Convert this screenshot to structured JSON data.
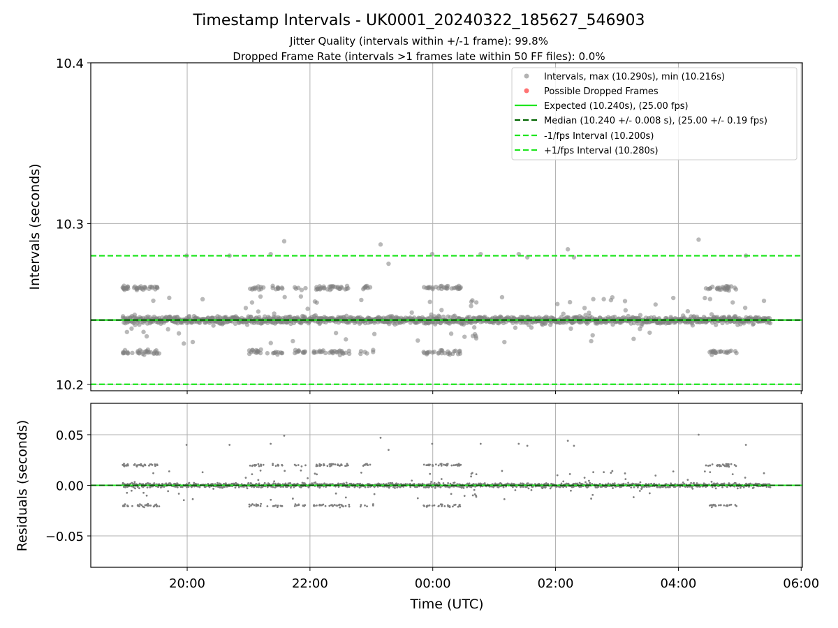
{
  "chart_data": {
    "type": "scatter",
    "title": "Timestamp Intervals - UK0001_20240322_185627_546903",
    "subtitle_lines": [
      "Jitter Quality (intervals within +/-1 frame): 99.8%",
      "Dropped Frame Rate (intervals >1 frames late within 50 FF files): 0.0%"
    ],
    "xlabel": "Time (UTC)",
    "x_ticks": [
      "20:00",
      "22:00",
      "00:00",
      "02:00",
      "04:00",
      "06:00"
    ],
    "x_tick_hours": [
      20,
      22,
      24,
      26,
      28,
      30
    ],
    "xlim_hours": [
      18.43,
      30.02
    ],
    "data_range_hours": [
      18.95,
      29.5
    ],
    "grid": true,
    "legend_position": "top-right",
    "colors": {
      "intervals": "#808080",
      "dropped": "#ff4444",
      "expected": "#1fe51f",
      "median": "#006400",
      "fps_bounds": "#1fe51f",
      "axis": "#000000",
      "grid": "#b0b0b0"
    },
    "top_panel": {
      "ylabel": "Intervals (seconds)",
      "ylim": [
        10.196,
        10.4
      ],
      "y_ticks": [
        "10.2",
        "10.3",
        "10.4"
      ],
      "y_tick_values": [
        10.2,
        10.3,
        10.4
      ],
      "expected": 10.24,
      "median": 10.24,
      "minus_fps": 10.2,
      "plus_fps": 10.28,
      "legend": [
        {
          "label": "Intervals, max (10.290s), min (10.216s)",
          "kind": "dot-gray"
        },
        {
          "label": "Possible Dropped Frames",
          "kind": "dot-red"
        },
        {
          "label": "Expected (10.240s), (25.00 fps)",
          "kind": "line-solid-green"
        },
        {
          "label": "Median (10.240 +/- 0.008 s), (25.00 +/- 0.19 fps)",
          "kind": "line-dash-darkgreen"
        },
        {
          "label": "-1/fps Interval (10.200s)",
          "kind": "line-dash-green"
        },
        {
          "label": "+1/fps Interval (10.280s)",
          "kind": "line-dash-green"
        }
      ]
    },
    "bottom_panel": {
      "ylabel": "Residuals (seconds)",
      "ylim": [
        -0.081,
        0.081
      ],
      "y_ticks": [
        "0.05",
        "0.00",
        "−0.05"
      ],
      "y_tick_values": [
        0.05,
        0.0,
        -0.05
      ],
      "zero_line": 0.0
    },
    "series": {
      "baseline": 10.24,
      "clusters": [
        {
          "start": 18.95,
          "end": 19.55,
          "values": [
            10.26,
            10.22
          ],
          "density": 0.7
        },
        {
          "start": 21.0,
          "end": 21.55,
          "values": [
            10.26,
            10.22
          ],
          "density": 0.5
        },
        {
          "start": 21.75,
          "end": 21.95,
          "values": [
            10.26,
            10.22
          ],
          "density": 0.5
        },
        {
          "start": 22.05,
          "end": 22.65,
          "values": [
            10.26,
            10.22
          ],
          "density": 0.6
        },
        {
          "start": 22.8,
          "end": 23.05,
          "values": [
            10.26,
            10.22
          ],
          "density": 0.35
        },
        {
          "start": 23.85,
          "end": 24.5,
          "values": [
            10.26,
            10.22
          ],
          "density": 0.55
        },
        {
          "start": 24.6,
          "end": 24.75,
          "values": [
            10.25,
            10.23
          ],
          "density": 0.3
        },
        {
          "start": 28.45,
          "end": 28.95,
          "values": [
            10.26,
            10.22
          ],
          "density": 0.6
        }
      ],
      "outliers": [
        {
          "x": 19.99,
          "y": 10.28
        },
        {
          "x": 20.69,
          "y": 10.28
        },
        {
          "x": 21.36,
          "y": 10.281
        },
        {
          "x": 21.58,
          "y": 10.289
        },
        {
          "x": 23.15,
          "y": 10.287
        },
        {
          "x": 23.28,
          "y": 10.275
        },
        {
          "x": 23.99,
          "y": 10.281
        },
        {
          "x": 24.78,
          "y": 10.281
        },
        {
          "x": 25.4,
          "y": 10.281
        },
        {
          "x": 25.54,
          "y": 10.279
        },
        {
          "x": 26.2,
          "y": 10.284
        },
        {
          "x": 26.3,
          "y": 10.279
        },
        {
          "x": 28.33,
          "y": 10.29
        },
        {
          "x": 29.1,
          "y": 10.28
        }
      ]
    }
  }
}
